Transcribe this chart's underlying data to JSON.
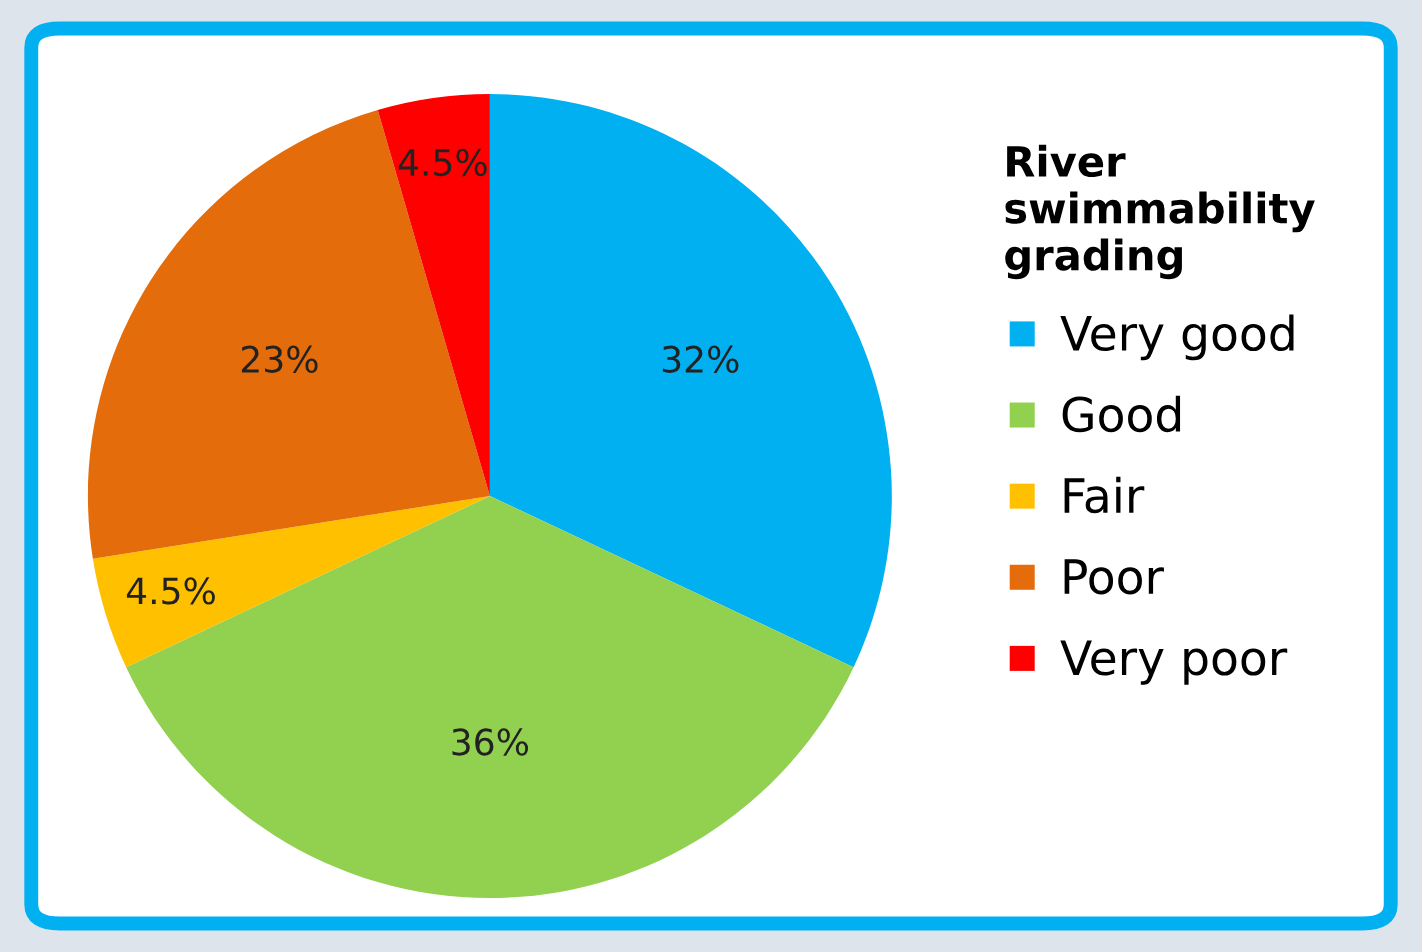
{
  "chart_data": {
    "type": "pie",
    "legend_title": "River swimmability grading",
    "categories": [
      "Very good",
      "Good",
      "Fair",
      "Poor",
      "Very poor"
    ],
    "values": [
      32,
      36,
      4.5,
      23,
      4.5
    ],
    "value_labels": [
      "32%",
      "36%",
      "4.5%",
      "23%",
      "4.5%"
    ],
    "colors": [
      "#00b0f0",
      "#92d050",
      "#ffc000",
      "#e46c0a",
      "#ff0000"
    ],
    "legend": "right"
  }
}
